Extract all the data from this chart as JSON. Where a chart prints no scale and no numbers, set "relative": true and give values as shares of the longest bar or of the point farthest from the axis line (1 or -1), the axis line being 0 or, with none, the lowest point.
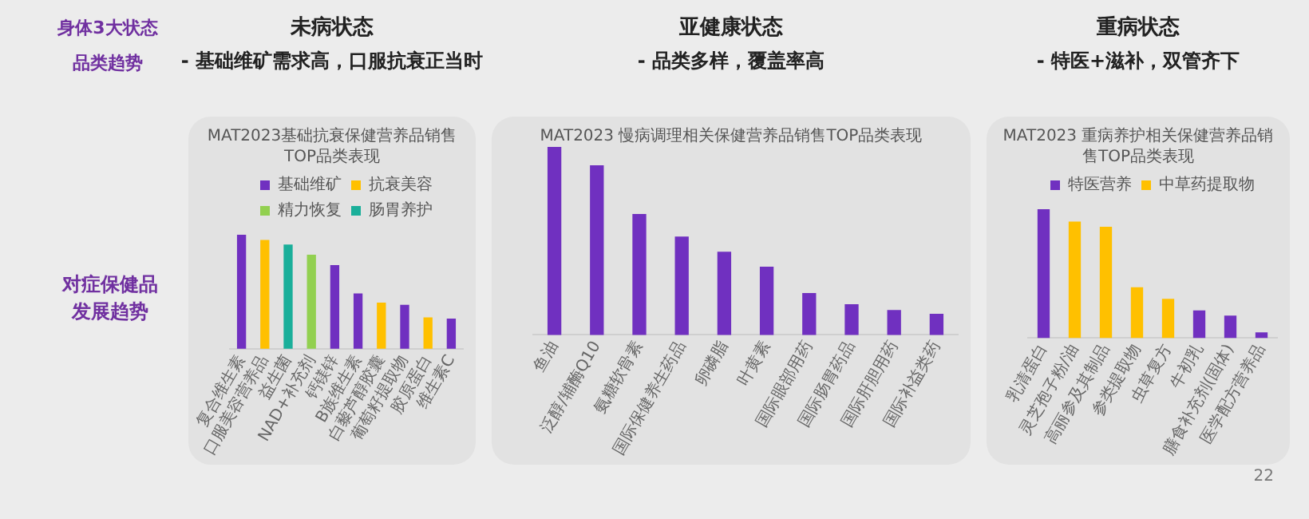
{
  "chart_data": [
    {
      "type": "bar",
      "relative": true,
      "title": "MAT2023基础抗衰保健营养品销售TOP品类表现",
      "legend": "top",
      "grid": false,
      "annotations": [
        "身体3大状态",
        "品类趋势",
        "对症保健品发展趋势",
        "未病状态",
        "- 基础维矿需求高，口服抗衰正当时"
      ],
      "categories": [
        "复合维生素",
        "口服美容营养品",
        "益生菌",
        "NAD+补充剂",
        "钙镁锌",
        "B族维生素",
        "白藜芦醇胶囊",
        "葡萄籽提取物",
        "胶原蛋白",
        "维生素C"
      ],
      "series": [
        {
          "name": "基础维矿",
          "color": "#7030c0",
          "values": [
            1,
            null,
            null,
            null,
            0.73,
            0.48,
            null,
            0.38,
            null,
            0.26
          ]
        },
        {
          "name": "抗衰美容",
          "color": "#ffc000",
          "values": [
            null,
            0.95,
            null,
            null,
            null,
            null,
            0.4,
            null,
            0.27,
            null
          ]
        },
        {
          "name": "精力恢复",
          "color": "#92d050",
          "values": [
            null,
            null,
            null,
            0.82,
            null,
            null,
            null,
            null,
            null,
            null
          ]
        },
        {
          "name": "肠胃养护",
          "color": "#1aaf9a",
          "values": [
            null,
            null,
            0.91,
            null,
            null,
            null,
            null,
            null,
            null,
            null
          ]
        }
      ]
    },
    {
      "type": "bar",
      "relative": true,
      "title": "MAT2023 慢病调理相关保健营养品销售TOP品类表现",
      "grid": false,
      "annotations": [
        "亚健康状态",
        "- 品类多样，覆盖率高"
      ],
      "categories": [
        "鱼油",
        "泛醇/辅酶Q10",
        "氨糖软骨素",
        "国际保健养生药品",
        "卵磷脂",
        "叶黄素",
        "国际眼部用药",
        "国际肠胃药品",
        "国际肝胆用药",
        "国际补益类药"
      ],
      "series": [
        {
          "color": "#7030c0",
          "values": [
            1,
            0.9,
            0.64,
            0.52,
            0.44,
            0.36,
            0.22,
            0.16,
            0.13,
            0.11
          ]
        }
      ]
    },
    {
      "type": "bar",
      "relative": true,
      "title": "MAT2023 重病养护相关保健营养品销售TOP品类表现",
      "legend": "top",
      "grid": false,
      "annotations": [
        "重病状态",
        "- 特医+滋补，双管齐下",
        "22"
      ],
      "categories": [
        "乳清蛋白",
        "灵芝孢子粉/油",
        "高丽参及其制品",
        "参类提取物",
        "虫草复方",
        "牛初乳",
        "膳食补充剂(固体)",
        "医学配方营养品"
      ],
      "series": [
        {
          "name": "特医营养",
          "color": "#7030c0",
          "values": [
            1,
            null,
            null,
            null,
            null,
            0.21,
            0.17,
            0.04
          ]
        },
        {
          "name": "中草药提取物",
          "color": "#ffc000",
          "values": [
            null,
            0.9,
            0.86,
            0.39,
            0.3,
            null,
            null,
            null
          ]
        }
      ]
    }
  ]
}
